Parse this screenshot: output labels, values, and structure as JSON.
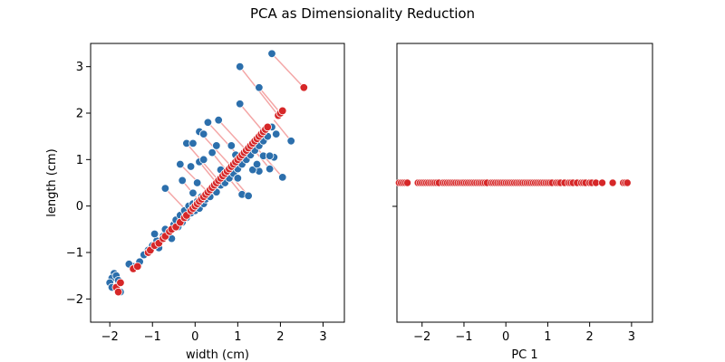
{
  "figure": {
    "title": "PCA as Dimensionality Reduction"
  },
  "colors": {
    "original": "#2c6fac",
    "projected": "#d62728",
    "connector": "#f4a6a6"
  },
  "chart_data": [
    {
      "type": "scatter",
      "title": "",
      "xlabel": "width (cm)",
      "ylabel": "length (cm)",
      "xlim": [
        -2.45,
        3.5
      ],
      "ylim": [
        -2.5,
        3.5
      ],
      "xticks": [
        -2,
        -1,
        0,
        1,
        2,
        3
      ],
      "yticks": [
        -2,
        -1,
        0,
        1,
        2,
        3
      ],
      "tick_labels_x": [
        "−2",
        "−1",
        "0",
        "1",
        "2",
        "3"
      ],
      "tick_labels_y": [
        "−2",
        "−1",
        "0",
        "1",
        "2",
        "3"
      ],
      "grid": false,
      "series": [
        {
          "role": "original",
          "points": [
            [
              -1.9,
              -1.45
            ],
            [
              -1.95,
              -1.55
            ],
            [
              -2.0,
              -1.65
            ],
            [
              -1.85,
              -1.5
            ],
            [
              -1.8,
              -1.6
            ],
            [
              -1.95,
              -1.75
            ],
            [
              -1.75,
              -1.85
            ],
            [
              -1.45,
              -1.3
            ],
            [
              -1.55,
              -1.25
            ],
            [
              -1.3,
              -1.2
            ],
            [
              -1.2,
              -1.05
            ],
            [
              -1.1,
              -0.95
            ],
            [
              -1.0,
              -0.85
            ],
            [
              -0.9,
              -0.75
            ],
            [
              -0.95,
              -0.6
            ],
            [
              -0.85,
              -0.9
            ],
            [
              -0.75,
              -0.65
            ],
            [
              -0.7,
              -0.5
            ],
            [
              -0.6,
              -0.55
            ],
            [
              -0.55,
              -0.7
            ],
            [
              -0.5,
              -0.4
            ],
            [
              -0.45,
              -0.3
            ],
            [
              -0.4,
              -0.45
            ],
            [
              -0.35,
              -0.2
            ],
            [
              -0.3,
              -0.35
            ],
            [
              -0.25,
              -0.1
            ],
            [
              -0.2,
              -0.25
            ],
            [
              -0.15,
              0.0
            ],
            [
              -0.1,
              -0.15
            ],
            [
              -0.05,
              0.05
            ],
            [
              0.0,
              -0.1
            ],
            [
              0.05,
              0.1
            ],
            [
              0.1,
              -0.05
            ],
            [
              0.15,
              0.2
            ],
            [
              0.2,
              0.05
            ],
            [
              0.25,
              0.15
            ],
            [
              0.3,
              0.3
            ],
            [
              0.35,
              0.2
            ],
            [
              0.4,
              0.35
            ],
            [
              0.45,
              0.45
            ],
            [
              0.5,
              0.3
            ],
            [
              0.55,
              0.55
            ],
            [
              0.6,
              0.45
            ],
            [
              0.65,
              0.65
            ],
            [
              0.7,
              0.5
            ],
            [
              0.75,
              0.75
            ],
            [
              0.8,
              0.6
            ],
            [
              0.85,
              0.85
            ],
            [
              0.9,
              0.7
            ],
            [
              0.95,
              0.95
            ],
            [
              1.0,
              0.8
            ],
            [
              1.05,
              1.05
            ],
            [
              1.1,
              0.9
            ],
            [
              1.15,
              1.15
            ],
            [
              1.2,
              1.0
            ],
            [
              1.25,
              1.25
            ],
            [
              1.3,
              1.1
            ],
            [
              1.35,
              1.35
            ],
            [
              1.4,
              1.2
            ],
            [
              1.45,
              1.45
            ],
            [
              1.5,
              1.3
            ],
            [
              1.55,
              1.55
            ],
            [
              1.6,
              1.4
            ],
            [
              1.65,
              1.65
            ],
            [
              1.7,
              1.5
            ],
            [
              1.8,
              1.7
            ],
            [
              1.9,
              1.55
            ],
            [
              -0.7,
              0.38
            ],
            [
              -0.35,
              0.9
            ],
            [
              -0.3,
              0.55
            ],
            [
              0.1,
              1.6
            ],
            [
              0.2,
              1.55
            ],
            [
              0.3,
              1.8
            ],
            [
              0.55,
              1.85
            ],
            [
              0.95,
              1.1
            ],
            [
              1.0,
              0.6
            ],
            [
              1.1,
              0.25
            ],
            [
              1.25,
              0.22
            ],
            [
              1.5,
              0.75
            ],
            [
              1.75,
              0.8
            ],
            [
              2.05,
              0.62
            ],
            [
              2.25,
              1.4
            ],
            [
              1.85,
              1.05
            ],
            [
              1.05,
              2.2
            ],
            [
              1.05,
              3.0
            ],
            [
              1.5,
              2.55
            ],
            [
              1.8,
              3.28
            ],
            [
              -0.2,
              1.35
            ],
            [
              -0.05,
              1.35
            ],
            [
              0.1,
              0.95
            ],
            [
              0.2,
              1.0
            ],
            [
              0.4,
              1.15
            ],
            [
              0.6,
              0.78
            ],
            [
              0.85,
              1.3
            ],
            [
              1.35,
              0.78
            ],
            [
              1.6,
              1.08
            ],
            [
              1.75,
              1.08
            ],
            [
              1.45,
              0.9
            ],
            [
              0.5,
              1.3
            ],
            [
              -0.1,
              0.85
            ],
            [
              0.05,
              0.5
            ],
            [
              -0.05,
              0.28
            ]
          ]
        },
        {
          "role": "projected",
          "points": [
            [
              -1.85,
              -1.75
            ],
            [
              -1.8,
              -1.85
            ],
            [
              -1.75,
              -1.65
            ],
            [
              -1.45,
              -1.35
            ],
            [
              -1.35,
              -1.3
            ],
            [
              -1.1,
              -1.0
            ],
            [
              -1.05,
              -0.95
            ],
            [
              -0.95,
              -0.85
            ],
            [
              -0.85,
              -0.8
            ],
            [
              -0.75,
              -0.7
            ],
            [
              -0.7,
              -0.65
            ],
            [
              -0.6,
              -0.55
            ],
            [
              -0.55,
              -0.5
            ],
            [
              -0.45,
              -0.45
            ],
            [
              -0.35,
              -0.35
            ],
            [
              -0.25,
              -0.25
            ],
            [
              -0.2,
              -0.2
            ],
            [
              -0.1,
              -0.1
            ],
            [
              -0.05,
              -0.05
            ],
            [
              0.0,
              0.0
            ],
            [
              0.05,
              0.05
            ],
            [
              0.1,
              0.1
            ],
            [
              0.15,
              0.15
            ],
            [
              0.2,
              0.2
            ],
            [
              0.25,
              0.25
            ],
            [
              0.3,
              0.3
            ],
            [
              0.35,
              0.35
            ],
            [
              0.4,
              0.4
            ],
            [
              0.45,
              0.45
            ],
            [
              0.5,
              0.5
            ],
            [
              0.55,
              0.55
            ],
            [
              0.6,
              0.6
            ],
            [
              0.65,
              0.65
            ],
            [
              0.7,
              0.7
            ],
            [
              0.75,
              0.75
            ],
            [
              0.8,
              0.8
            ],
            [
              0.85,
              0.85
            ],
            [
              0.9,
              0.9
            ],
            [
              0.95,
              0.95
            ],
            [
              1.0,
              1.0
            ],
            [
              1.05,
              1.05
            ],
            [
              1.1,
              1.1
            ],
            [
              1.15,
              1.15
            ],
            [
              1.2,
              1.2
            ],
            [
              1.25,
              1.25
            ],
            [
              1.3,
              1.3
            ],
            [
              1.35,
              1.35
            ],
            [
              1.4,
              1.4
            ],
            [
              1.45,
              1.45
            ],
            [
              1.5,
              1.5
            ],
            [
              1.55,
              1.55
            ],
            [
              1.6,
              1.6
            ],
            [
              1.65,
              1.65
            ],
            [
              1.7,
              1.7
            ],
            [
              1.95,
              1.95
            ],
            [
              2.0,
              2.0
            ],
            [
              2.05,
              2.05
            ],
            [
              2.55,
              2.55
            ]
          ]
        }
      ],
      "connectors": [
        [
          [
            1.05,
            3.0
          ],
          [
            1.95,
            1.95
          ]
        ],
        [
          [
            1.5,
            2.55
          ],
          [
            2.0,
            2.0
          ]
        ],
        [
          [
            1.8,
            3.28
          ],
          [
            2.55,
            2.55
          ]
        ],
        [
          [
            1.05,
            2.2
          ],
          [
            1.6,
            1.6
          ]
        ],
        [
          [
            2.25,
            1.4
          ],
          [
            1.85,
            1.85
          ]
        ],
        [
          [
            0.55,
            1.85
          ],
          [
            1.2,
            1.2
          ]
        ],
        [
          [
            0.3,
            1.8
          ],
          [
            1.05,
            1.05
          ]
        ],
        [
          [
            0.1,
            1.6
          ],
          [
            0.85,
            0.85
          ]
        ],
        [
          [
            -0.2,
            1.35
          ],
          [
            0.55,
            0.55
          ]
        ],
        [
          [
            -0.35,
            0.9
          ],
          [
            0.3,
            0.3
          ]
        ],
        [
          [
            -0.7,
            0.38
          ],
          [
            -0.15,
            -0.15
          ]
        ],
        [
          [
            2.05,
            0.62
          ],
          [
            1.35,
            1.35
          ]
        ],
        [
          [
            1.75,
            0.8
          ],
          [
            1.3,
            1.3
          ]
        ],
        [
          [
            1.25,
            0.22
          ],
          [
            0.75,
            0.75
          ]
        ],
        [
          [
            1.1,
            0.25
          ],
          [
            0.7,
            0.7
          ]
        ],
        [
          [
            1.0,
            0.6
          ],
          [
            0.8,
            0.8
          ]
        ],
        [
          [
            -0.3,
            0.55
          ],
          [
            0.1,
            0.1
          ]
        ],
        [
          [
            0.1,
            0.95
          ],
          [
            0.5,
            0.5
          ]
        ],
        [
          [
            0.4,
            1.15
          ],
          [
            0.75,
            0.75
          ]
        ]
      ]
    },
    {
      "type": "scatter",
      "title": "",
      "xlabel": "PC 1",
      "ylabel": "",
      "xlim": [
        -2.6,
        3.5
      ],
      "ylim": [
        -1,
        1
      ],
      "xticks": [
        -2,
        -1,
        0,
        1,
        2,
        3
      ],
      "tick_labels_x": [
        "−2",
        "−1",
        "0",
        "1",
        "2",
        "3"
      ],
      "grid": false,
      "series": [
        {
          "role": "projected",
          "x": [
            -2.55,
            -2.5,
            -2.45,
            -2.4,
            -2.35,
            -2.1,
            -2.05,
            -2.0,
            -1.95,
            -1.9,
            -1.85,
            -1.8,
            -1.75,
            -1.7,
            -1.65,
            -1.6,
            -1.5,
            -1.45,
            -1.4,
            -1.35,
            -1.3,
            -1.25,
            -1.2,
            -1.15,
            -1.1,
            -1.05,
            -1.0,
            -0.95,
            -0.9,
            -0.85,
            -0.8,
            -0.75,
            -0.7,
            -0.65,
            -0.6,
            -0.55,
            -0.5,
            -0.45,
            -0.35,
            -0.3,
            -0.25,
            -0.2,
            -0.15,
            -0.1,
            -0.05,
            0.0,
            0.05,
            0.1,
            0.15,
            0.2,
            0.25,
            0.3,
            0.35,
            0.4,
            0.45,
            0.5,
            0.55,
            0.6,
            0.65,
            0.7,
            0.75,
            0.8,
            0.85,
            0.9,
            0.95,
            1.0,
            1.05,
            1.1,
            1.2,
            1.25,
            1.3,
            1.4,
            1.5,
            1.55,
            1.6,
            1.7,
            1.8,
            1.85,
            1.9,
            2.0,
            2.05,
            2.15,
            2.3,
            2.55,
            2.8,
            2.85,
            2.9
          ],
          "y": 0
        }
      ]
    }
  ]
}
